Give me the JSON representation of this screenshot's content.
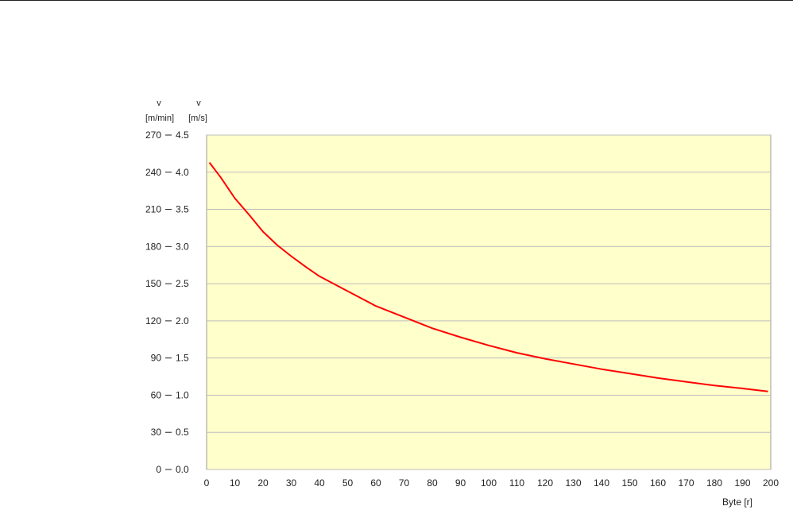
{
  "chart_data": {
    "type": "line",
    "xlabel": "Byte [r]",
    "y_axes": [
      {
        "symbol": "v",
        "unit": "[m/min]",
        "ticks": [
          0,
          30,
          60,
          90,
          120,
          150,
          180,
          210,
          240,
          270
        ]
      },
      {
        "symbol": "v",
        "unit": "[m/s]",
        "ticks": [
          "0.0",
          "0.5",
          "1.0",
          "1.5",
          "2.0",
          "2.5",
          "3.0",
          "3.5",
          "4.0",
          "4.5"
        ]
      }
    ],
    "xlim": [
      0,
      200
    ],
    "ylim": [
      0,
      4.5
    ],
    "x_ticks": [
      0,
      10,
      20,
      30,
      40,
      50,
      60,
      70,
      80,
      90,
      100,
      110,
      120,
      130,
      140,
      150,
      160,
      170,
      180,
      190,
      200
    ],
    "grid": true,
    "series": [
      {
        "color": "#ff0000",
        "x": [
          1,
          5,
          10,
          15,
          20,
          25,
          30,
          35,
          40,
          50,
          60,
          70,
          80,
          90,
          100,
          110,
          120,
          130,
          140,
          150,
          160,
          170,
          180,
          190,
          199
        ],
        "y": [
          4.13,
          3.93,
          3.65,
          3.43,
          3.2,
          3.02,
          2.87,
          2.73,
          2.6,
          2.4,
          2.2,
          2.05,
          1.9,
          1.78,
          1.67,
          1.57,
          1.49,
          1.42,
          1.35,
          1.29,
          1.23,
          1.18,
          1.13,
          1.09,
          1.05
        ]
      }
    ],
    "colors": {
      "plot_background": "#ffffcc",
      "grid": "#bdbdbd",
      "line": "#ff0000"
    }
  }
}
